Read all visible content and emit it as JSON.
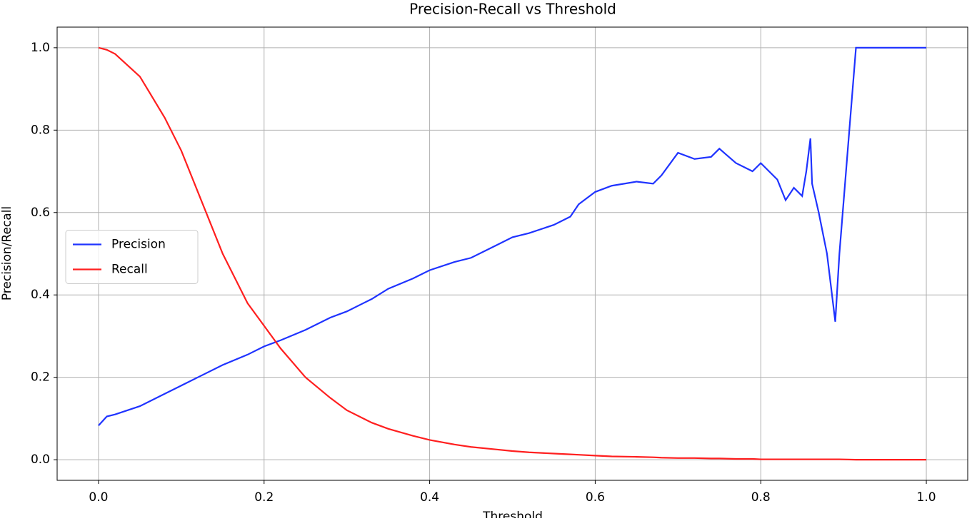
{
  "chart_data": {
    "type": "line",
    "title": "Precision-Recall vs Threshold",
    "x_label": "Threshold",
    "y_label": "Precision/Recall",
    "x": [
      0,
      0.01,
      0.02,
      0.05,
      0.08,
      0.1,
      0.12,
      0.15,
      0.18,
      0.2,
      0.22,
      0.25,
      0.28,
      0.3,
      0.33,
      0.35,
      0.38,
      0.4,
      0.43,
      0.45,
      0.48,
      0.5,
      0.52,
      0.55,
      0.57,
      0.58,
      0.6,
      0.62,
      0.65,
      0.67,
      0.68,
      0.7,
      0.72,
      0.74,
      0.75,
      0.77,
      0.79,
      0.8,
      0.82,
      0.83,
      0.84,
      0.85,
      0.855,
      0.86,
      0.862,
      0.87,
      0.88,
      0.89,
      0.895,
      0.915,
      0.95,
      1.0
    ],
    "series": [
      {
        "name": "Precision",
        "color": "#1f33ff",
        "values": [
          0.083,
          0.105,
          0.11,
          0.13,
          0.16,
          0.18,
          0.2,
          0.23,
          0.255,
          0.275,
          0.29,
          0.315,
          0.345,
          0.36,
          0.39,
          0.415,
          0.44,
          0.46,
          0.48,
          0.49,
          0.52,
          0.54,
          0.55,
          0.57,
          0.59,
          0.62,
          0.65,
          0.665,
          0.675,
          0.67,
          0.69,
          0.745,
          0.73,
          0.735,
          0.755,
          0.72,
          0.7,
          0.72,
          0.68,
          0.63,
          0.66,
          0.64,
          0.7,
          0.78,
          0.67,
          0.6,
          0.5,
          0.335,
          0.5,
          1.0,
          1.0,
          1.0
        ]
      },
      {
        "name": "Recall",
        "color": "#ff1f1f",
        "values": [
          1.0,
          0.995,
          0.985,
          0.93,
          0.83,
          0.75,
          0.65,
          0.5,
          0.38,
          0.325,
          0.27,
          0.2,
          0.15,
          0.12,
          0.09,
          0.075,
          0.058,
          0.048,
          0.037,
          0.031,
          0.025,
          0.021,
          0.018,
          0.015,
          0.013,
          0.012,
          0.01,
          0.008,
          0.007,
          0.006,
          0.005,
          0.004,
          0.004,
          0.003,
          0.003,
          0.002,
          0.002,
          0.001,
          0.001,
          0.001,
          0.001,
          0.001,
          0.001,
          0.001,
          0.001,
          0.001,
          0.001,
          0.001,
          0.001,
          0,
          0,
          0
        ]
      }
    ],
    "xlim": [
      -0.05,
      1.05
    ],
    "ylim": [
      -0.05,
      1.05
    ],
    "xticks": [
      {
        "value": 0,
        "label": "0.0"
      },
      0.2,
      0.4,
      0.6,
      0.8,
      {
        "value": 1,
        "label": "1.0"
      }
    ],
    "yticks": [
      {
        "value": 0,
        "label": "0.0"
      },
      0.2,
      0.4,
      0.6,
      0.8,
      {
        "value": 1,
        "label": "1.0"
      }
    ],
    "grid": true,
    "legend": "center left"
  }
}
